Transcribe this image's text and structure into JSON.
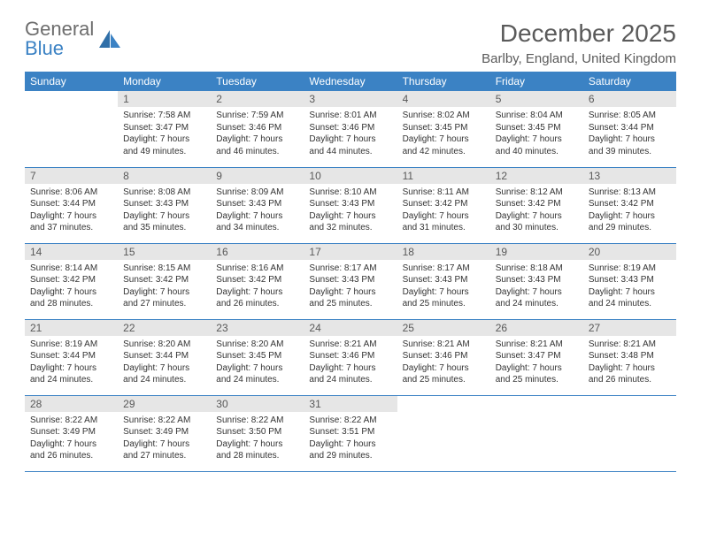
{
  "logo": {
    "text1": "General",
    "text2": "Blue"
  },
  "header": {
    "month_title": "December 2025",
    "location": "Barlby, England, United Kingdom"
  },
  "colors": {
    "header_bg": "#3b82c4",
    "header_text": "#ffffff",
    "daynum_bg": "#e6e6e6",
    "daynum_text": "#595959",
    "row_border": "#3b82c4",
    "body_text": "#333333",
    "page_bg": "#ffffff"
  },
  "days_of_week": [
    "Sunday",
    "Monday",
    "Tuesday",
    "Wednesday",
    "Thursday",
    "Friday",
    "Saturday"
  ],
  "weeks": [
    [
      null,
      {
        "n": "1",
        "sr": "7:58 AM",
        "ss": "3:47 PM",
        "dl": "7 hours and 49 minutes."
      },
      {
        "n": "2",
        "sr": "7:59 AM",
        "ss": "3:46 PM",
        "dl": "7 hours and 46 minutes."
      },
      {
        "n": "3",
        "sr": "8:01 AM",
        "ss": "3:46 PM",
        "dl": "7 hours and 44 minutes."
      },
      {
        "n": "4",
        "sr": "8:02 AM",
        "ss": "3:45 PM",
        "dl": "7 hours and 42 minutes."
      },
      {
        "n": "5",
        "sr": "8:04 AM",
        "ss": "3:45 PM",
        "dl": "7 hours and 40 minutes."
      },
      {
        "n": "6",
        "sr": "8:05 AM",
        "ss": "3:44 PM",
        "dl": "7 hours and 39 minutes."
      }
    ],
    [
      {
        "n": "7",
        "sr": "8:06 AM",
        "ss": "3:44 PM",
        "dl": "7 hours and 37 minutes."
      },
      {
        "n": "8",
        "sr": "8:08 AM",
        "ss": "3:43 PM",
        "dl": "7 hours and 35 minutes."
      },
      {
        "n": "9",
        "sr": "8:09 AM",
        "ss": "3:43 PM",
        "dl": "7 hours and 34 minutes."
      },
      {
        "n": "10",
        "sr": "8:10 AM",
        "ss": "3:43 PM",
        "dl": "7 hours and 32 minutes."
      },
      {
        "n": "11",
        "sr": "8:11 AM",
        "ss": "3:42 PM",
        "dl": "7 hours and 31 minutes."
      },
      {
        "n": "12",
        "sr": "8:12 AM",
        "ss": "3:42 PM",
        "dl": "7 hours and 30 minutes."
      },
      {
        "n": "13",
        "sr": "8:13 AM",
        "ss": "3:42 PM",
        "dl": "7 hours and 29 minutes."
      }
    ],
    [
      {
        "n": "14",
        "sr": "8:14 AM",
        "ss": "3:42 PM",
        "dl": "7 hours and 28 minutes."
      },
      {
        "n": "15",
        "sr": "8:15 AM",
        "ss": "3:42 PM",
        "dl": "7 hours and 27 minutes."
      },
      {
        "n": "16",
        "sr": "8:16 AM",
        "ss": "3:42 PM",
        "dl": "7 hours and 26 minutes."
      },
      {
        "n": "17",
        "sr": "8:17 AM",
        "ss": "3:43 PM",
        "dl": "7 hours and 25 minutes."
      },
      {
        "n": "18",
        "sr": "8:17 AM",
        "ss": "3:43 PM",
        "dl": "7 hours and 25 minutes."
      },
      {
        "n": "19",
        "sr": "8:18 AM",
        "ss": "3:43 PM",
        "dl": "7 hours and 24 minutes."
      },
      {
        "n": "20",
        "sr": "8:19 AM",
        "ss": "3:43 PM",
        "dl": "7 hours and 24 minutes."
      }
    ],
    [
      {
        "n": "21",
        "sr": "8:19 AM",
        "ss": "3:44 PM",
        "dl": "7 hours and 24 minutes."
      },
      {
        "n": "22",
        "sr": "8:20 AM",
        "ss": "3:44 PM",
        "dl": "7 hours and 24 minutes."
      },
      {
        "n": "23",
        "sr": "8:20 AM",
        "ss": "3:45 PM",
        "dl": "7 hours and 24 minutes."
      },
      {
        "n": "24",
        "sr": "8:21 AM",
        "ss": "3:46 PM",
        "dl": "7 hours and 24 minutes."
      },
      {
        "n": "25",
        "sr": "8:21 AM",
        "ss": "3:46 PM",
        "dl": "7 hours and 25 minutes."
      },
      {
        "n": "26",
        "sr": "8:21 AM",
        "ss": "3:47 PM",
        "dl": "7 hours and 25 minutes."
      },
      {
        "n": "27",
        "sr": "8:21 AM",
        "ss": "3:48 PM",
        "dl": "7 hours and 26 minutes."
      }
    ],
    [
      {
        "n": "28",
        "sr": "8:22 AM",
        "ss": "3:49 PM",
        "dl": "7 hours and 26 minutes."
      },
      {
        "n": "29",
        "sr": "8:22 AM",
        "ss": "3:49 PM",
        "dl": "7 hours and 27 minutes."
      },
      {
        "n": "30",
        "sr": "8:22 AM",
        "ss": "3:50 PM",
        "dl": "7 hours and 28 minutes."
      },
      {
        "n": "31",
        "sr": "8:22 AM",
        "ss": "3:51 PM",
        "dl": "7 hours and 29 minutes."
      },
      null,
      null,
      null
    ]
  ],
  "labels": {
    "sunrise": "Sunrise: ",
    "sunset": "Sunset: ",
    "daylight": "Daylight: "
  }
}
